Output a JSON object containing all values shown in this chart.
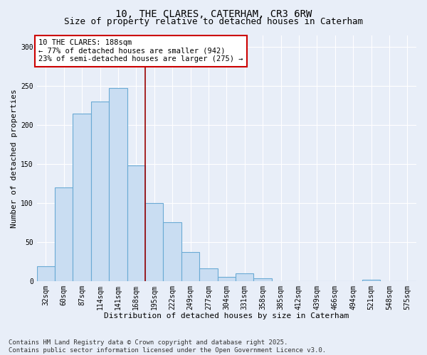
{
  "title1": "10, THE CLARES, CATERHAM, CR3 6RW",
  "title2": "Size of property relative to detached houses in Caterham",
  "xlabel": "Distribution of detached houses by size in Caterham",
  "ylabel": "Number of detached properties",
  "categories": [
    "32sqm",
    "60sqm",
    "87sqm",
    "114sqm",
    "141sqm",
    "168sqm",
    "195sqm",
    "222sqm",
    "249sqm",
    "277sqm",
    "304sqm",
    "331sqm",
    "358sqm",
    "385sqm",
    "412sqm",
    "439sqm",
    "466sqm",
    "494sqm",
    "521sqm",
    "548sqm",
    "575sqm"
  ],
  "values": [
    19,
    120,
    215,
    230,
    248,
    148,
    100,
    75,
    37,
    16,
    5,
    10,
    3,
    0,
    0,
    0,
    0,
    0,
    2,
    0,
    0
  ],
  "bar_color": "#c9ddf2",
  "bar_edge_color": "#6aaad4",
  "vline_x": 5.5,
  "vline_color": "#990000",
  "annotation_text": "10 THE CLARES: 188sqm\n← 77% of detached houses are smaller (942)\n23% of semi-detached houses are larger (275) →",
  "annotation_box_color": "#ffffff",
  "annotation_box_edge": "#cc0000",
  "ylim": [
    0,
    315
  ],
  "yticks": [
    0,
    50,
    100,
    150,
    200,
    250,
    300
  ],
  "bg_color": "#e8eef8",
  "plot_bg_color": "#e8eef8",
  "grid_color": "#ffffff",
  "footer": "Contains HM Land Registry data © Crown copyright and database right 2025.\nContains public sector information licensed under the Open Government Licence v3.0.",
  "title1_fontsize": 10,
  "title2_fontsize": 9,
  "xlabel_fontsize": 8,
  "ylabel_fontsize": 8,
  "tick_fontsize": 7,
  "annotation_fontsize": 7.5,
  "footer_fontsize": 6.5
}
